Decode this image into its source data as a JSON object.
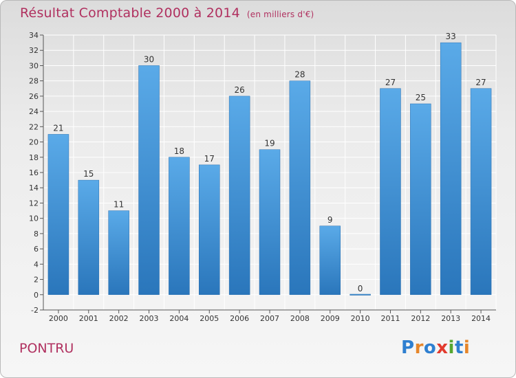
{
  "title": "Résultat Comptable 2000 à 2014",
  "subtitle": "(en milliers d'€)",
  "commune": "PONTRU",
  "logo": {
    "letters": [
      "P",
      "r",
      "o",
      "x",
      "i",
      "t",
      "i"
    ]
  },
  "colors": {
    "bar": "#4a9fe0",
    "bar_dark": "#2b78be",
    "title": "#b0305f",
    "grid": "#ffffff",
    "axis": "#555555"
  },
  "chart_data": {
    "type": "bar",
    "categories": [
      "2000",
      "2001",
      "2002",
      "2003",
      "2004",
      "2005",
      "2006",
      "2007",
      "2008",
      "2009",
      "2010",
      "2011",
      "2012",
      "2013",
      "2014"
    ],
    "values": [
      21,
      15,
      11,
      30,
      18,
      17,
      26,
      19,
      28,
      9,
      0,
      27,
      25,
      33,
      27
    ],
    "title": "Résultat Comptable 2000 à 2014",
    "subtitle": "(en milliers d'€)",
    "ylim": [
      -2,
      34
    ],
    "yticks": [
      -2,
      0,
      2,
      4,
      6,
      8,
      10,
      12,
      14,
      16,
      18,
      20,
      22,
      24,
      26,
      28,
      30,
      32,
      34
    ],
    "grid": true,
    "legend": "none"
  }
}
